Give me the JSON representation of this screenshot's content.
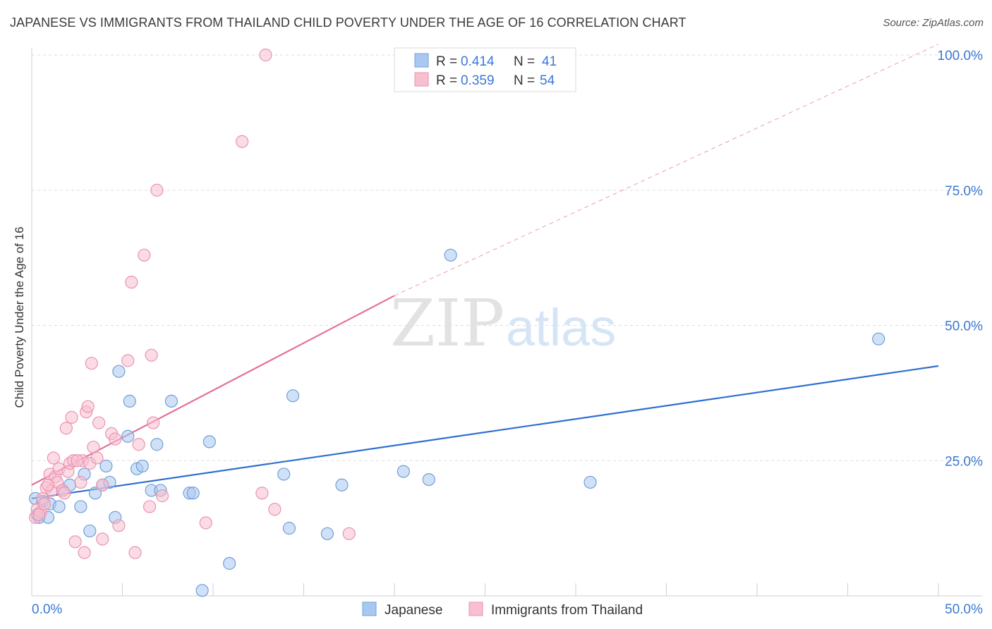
{
  "header": {
    "title": "JAPANESE VS IMMIGRANTS FROM THAILAND CHILD POVERTY UNDER THE AGE OF 16 CORRELATION CHART",
    "source": "Source: ZipAtlas.com"
  },
  "watermark": {
    "zip": "ZIP",
    "atlas": "atlas"
  },
  "colors": {
    "japanese_fill": "#a9c8f0",
    "japanese_stroke": "#6f9fd8",
    "japanese_line": "#2f6fd0",
    "thailand_fill": "#f7bfd0",
    "thailand_stroke": "#e993b0",
    "thailand_line": "#e4709a",
    "value_blue": "#3a78d4",
    "grid": "#dddddd"
  },
  "legend_top": [
    {
      "r_label": "R =",
      "r_value": "0.414",
      "n_label": "N =",
      "n_value": "41"
    },
    {
      "r_label": "R =",
      "r_value": "0.359",
      "n_label": "N =",
      "n_value": "54"
    }
  ],
  "chart_data": {
    "type": "scatter",
    "title": "JAPANESE VS IMMIGRANTS FROM THAILAND CHILD POVERTY UNDER THE AGE OF 16 CORRELATION CHART",
    "xlabel": "",
    "ylabel": "Child Poverty Under the Age of 16",
    "xlim": [
      0,
      50
    ],
    "ylim": [
      0,
      100
    ],
    "x_tick_labels": [
      "0.0%",
      "50.0%"
    ],
    "y_tick_values": [
      25,
      50,
      75,
      100
    ],
    "y_tick_labels": [
      "25.0%",
      "50.0%",
      "75.0%",
      "100.0%"
    ],
    "legend": [
      "Japanese",
      "Immigrants from Thailand"
    ],
    "series": [
      {
        "name": "Japanese",
        "r": 0.414,
        "n": 41,
        "trend": {
          "x0": 0,
          "y0": 18.0,
          "x1": 50,
          "y1": 42.5
        },
        "points": [
          [
            0.2,
            18.0
          ],
          [
            0.3,
            15.0
          ],
          [
            0.4,
            14.5
          ],
          [
            0.6,
            17.5
          ],
          [
            0.9,
            14.5
          ],
          [
            1.0,
            17.0
          ],
          [
            1.5,
            16.5
          ],
          [
            1.7,
            19.5
          ],
          [
            2.1,
            20.5
          ],
          [
            2.7,
            16.5
          ],
          [
            2.9,
            22.5
          ],
          [
            3.2,
            12.0
          ],
          [
            3.5,
            19.0
          ],
          [
            3.9,
            20.5
          ],
          [
            4.1,
            24.0
          ],
          [
            4.3,
            21.0
          ],
          [
            4.6,
            14.5
          ],
          [
            4.8,
            41.5
          ],
          [
            5.3,
            29.5
          ],
          [
            5.4,
            36.0
          ],
          [
            5.8,
            23.5
          ],
          [
            6.1,
            24.0
          ],
          [
            6.6,
            19.5
          ],
          [
            6.9,
            28.0
          ],
          [
            7.1,
            19.5
          ],
          [
            7.7,
            36.0
          ],
          [
            8.7,
            19.0
          ],
          [
            8.9,
            19.0
          ],
          [
            9.4,
            1.0
          ],
          [
            9.8,
            28.5
          ],
          [
            10.9,
            6.0
          ],
          [
            13.9,
            22.5
          ],
          [
            14.4,
            37.0
          ],
          [
            14.2,
            12.5
          ],
          [
            16.3,
            11.5
          ],
          [
            17.1,
            20.5
          ],
          [
            20.5,
            23.0
          ],
          [
            21.9,
            21.5
          ],
          [
            23.1,
            63.0
          ],
          [
            30.8,
            21.0
          ],
          [
            46.7,
            47.5
          ]
        ]
      },
      {
        "name": "Immigrants from Thailand",
        "r": 0.359,
        "n": 54,
        "trend": {
          "x0": 0,
          "y0": 20.5,
          "x1": 20,
          "y1": 55.5
        },
        "trend_extension": {
          "x0": 20,
          "y0": 55.5,
          "x1": 50,
          "y1": 102.0
        },
        "points": [
          [
            0.2,
            14.5
          ],
          [
            0.3,
            16.0
          ],
          [
            0.5,
            15.5
          ],
          [
            0.6,
            18.0
          ],
          [
            0.7,
            17.0
          ],
          [
            0.8,
            20.0
          ],
          [
            1.0,
            22.5
          ],
          [
            1.1,
            19.5
          ],
          [
            1.2,
            25.5
          ],
          [
            1.3,
            22.0
          ],
          [
            1.4,
            21.0
          ],
          [
            1.5,
            23.5
          ],
          [
            1.7,
            19.5
          ],
          [
            1.9,
            31.0
          ],
          [
            2.0,
            23.0
          ],
          [
            2.1,
            24.5
          ],
          [
            2.2,
            33.0
          ],
          [
            2.3,
            25.0
          ],
          [
            2.4,
            10.0
          ],
          [
            2.7,
            21.0
          ],
          [
            2.8,
            25.0
          ],
          [
            2.9,
            8.0
          ],
          [
            3.0,
            34.0
          ],
          [
            3.1,
            35.0
          ],
          [
            3.2,
            24.5
          ],
          [
            3.3,
            43.0
          ],
          [
            3.4,
            27.5
          ],
          [
            3.6,
            25.5
          ],
          [
            3.7,
            32.0
          ],
          [
            3.9,
            20.5
          ],
          [
            3.9,
            10.5
          ],
          [
            4.4,
            30.0
          ],
          [
            4.6,
            29.0
          ],
          [
            4.8,
            13.0
          ],
          [
            5.3,
            43.5
          ],
          [
            5.5,
            58.0
          ],
          [
            5.7,
            8.0
          ],
          [
            5.9,
            28.0
          ],
          [
            6.2,
            63.0
          ],
          [
            6.5,
            16.5
          ],
          [
            6.6,
            44.5
          ],
          [
            6.7,
            32.0
          ],
          [
            6.9,
            75.0
          ],
          [
            7.2,
            18.5
          ],
          [
            9.6,
            13.5
          ],
          [
            11.6,
            84.0
          ],
          [
            12.9,
            100.0
          ],
          [
            12.7,
            19.0
          ],
          [
            13.4,
            16.0
          ],
          [
            17.5,
            11.5
          ],
          [
            0.4,
            15.0
          ],
          [
            1.8,
            19.0
          ],
          [
            0.9,
            20.5
          ],
          [
            2.5,
            25.0
          ]
        ]
      }
    ]
  }
}
